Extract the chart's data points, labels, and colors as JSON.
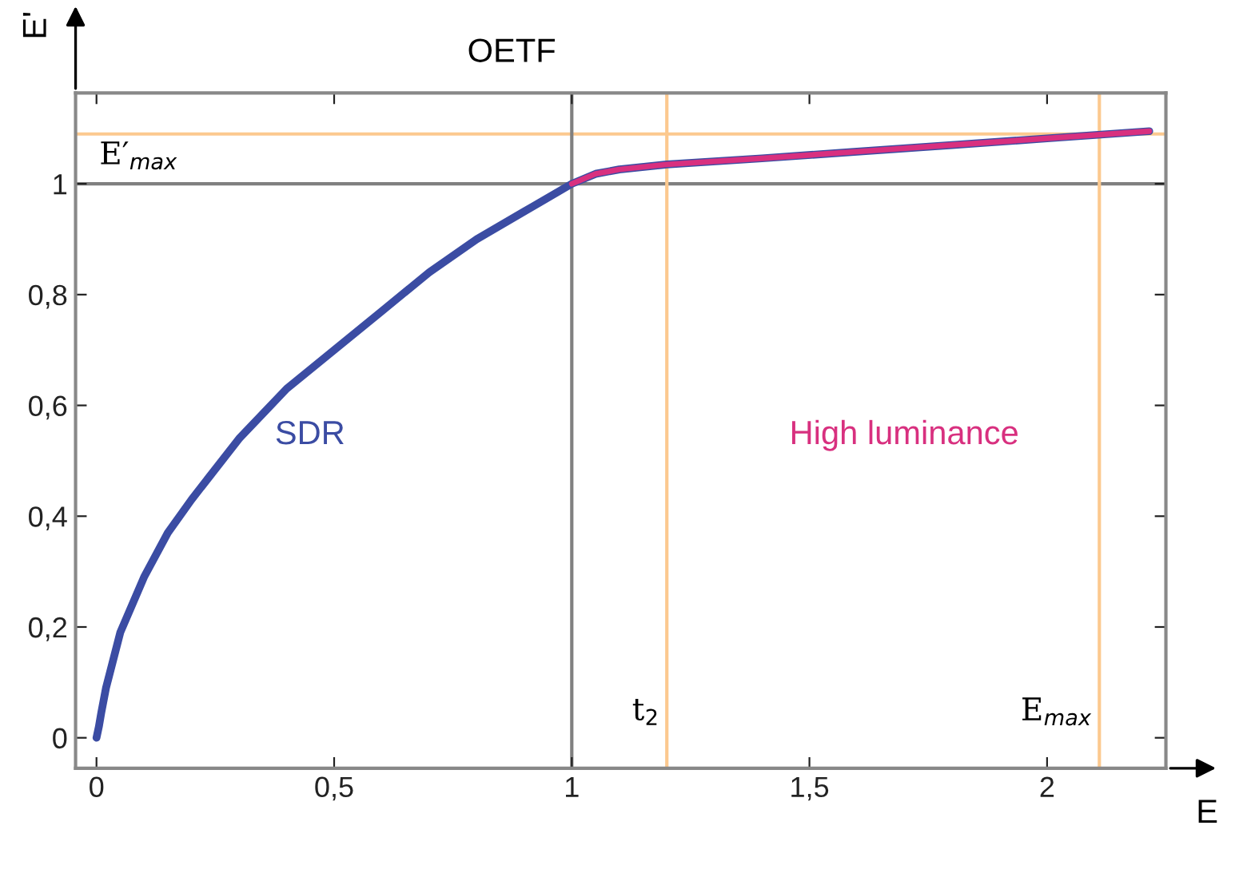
{
  "chart_data": {
    "type": "line",
    "title": "OETF",
    "xlabel": "E",
    "ylabel": "E'",
    "xlim": [
      -0.044,
      2.25
    ],
    "ylim": [
      -0.055,
      1.164
    ],
    "xticks": [
      0,
      {
        "value": 0.5,
        "label": "0,5"
      },
      1,
      {
        "value": 1.5,
        "label": "1,5"
      },
      2
    ],
    "yticks": [
      0,
      {
        "value": 0.2,
        "label": "0,2"
      },
      {
        "value": 0.4,
        "label": "0,4"
      },
      {
        "value": 0.6,
        "label": "0,6"
      },
      {
        "value": 0.8,
        "label": "0,8"
      },
      1
    ],
    "grid": false,
    "legend": false,
    "marker": "none",
    "line_style": "solid",
    "series": [
      {
        "name": "SDR",
        "color": "#3b4ca3",
        "x": [
          0,
          0.005,
          0.01,
          0.02,
          0.05,
          0.1,
          0.15,
          0.2,
          0.3,
          0.4,
          0.5,
          0.6,
          0.7,
          0.8,
          0.9,
          1.0,
          1.05,
          1.1,
          1.2,
          1.4,
          1.6,
          1.8,
          2.0,
          2.215
        ],
        "values": [
          0,
          0.02,
          0.045,
          0.09,
          0.19,
          0.29,
          0.37,
          0.43,
          0.54,
          0.63,
          0.7,
          0.77,
          0.84,
          0.9,
          0.95,
          1.0,
          1.018,
          1.026,
          1.035,
          1.046,
          1.058,
          1.07,
          1.082,
          1.095
        ]
      },
      {
        "name": "High luminance",
        "color": "#d8307f",
        "x": [
          1.0,
          1.05,
          1.1,
          1.2,
          1.4,
          1.6,
          1.8,
          2.0,
          2.215
        ],
        "values": [
          1.0,
          1.018,
          1.026,
          1.035,
          1.046,
          1.058,
          1.07,
          1.082,
          1.095
        ]
      }
    ],
    "ref_lines": [
      {
        "axis": "y",
        "value": 1.09,
        "label": "E′$_{max}$",
        "color": "#fcc98f"
      },
      {
        "axis": "y",
        "value": 1,
        "label": null,
        "color": "#808080"
      },
      {
        "axis": "x",
        "value": 1,
        "label": null,
        "color": "#808080"
      },
      {
        "axis": "x",
        "value": 1.2,
        "label": "t$_{2}$",
        "color": "#fcc98f"
      },
      {
        "axis": "x",
        "value": 2.11,
        "label": "E$_{max}$",
        "color": "#fcc98f"
      }
    ]
  }
}
